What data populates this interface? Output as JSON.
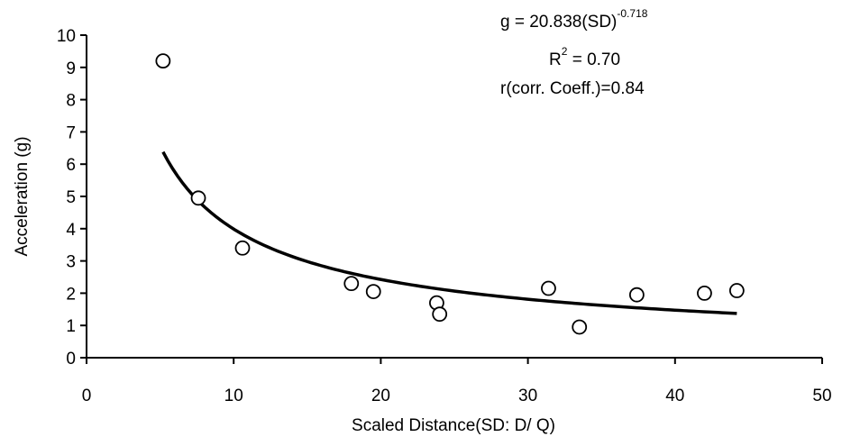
{
  "chart_data": {
    "type": "scatter",
    "xlabel": "Scaled Distance(SD: D/ Q)",
    "ylabel": "Acceleration (g)",
    "xlim": [
      0,
      50
    ],
    "ylim": [
      0,
      10
    ],
    "x_ticks": [
      0,
      10,
      20,
      30,
      40,
      50
    ],
    "y_ticks": [
      0,
      1,
      2,
      3,
      4,
      5,
      6,
      7,
      8,
      9,
      10
    ],
    "grid": false,
    "legend": "none",
    "series": [
      {
        "points": [
          {
            "x": 5.2,
            "y": 9.2
          },
          {
            "x": 7.6,
            "y": 4.95
          },
          {
            "x": 10.6,
            "y": 3.4
          },
          {
            "x": 18.0,
            "y": 2.3
          },
          {
            "x": 19.5,
            "y": 2.05
          },
          {
            "x": 23.8,
            "y": 1.7
          },
          {
            "x": 24.0,
            "y": 1.35
          },
          {
            "x": 31.4,
            "y": 2.15
          },
          {
            "x": 33.5,
            "y": 0.95
          },
          {
            "x": 37.4,
            "y": 1.95
          },
          {
            "x": 42.0,
            "y": 2.0
          },
          {
            "x": 44.2,
            "y": 2.08
          }
        ]
      }
    ],
    "trendline": {
      "type": "power",
      "coefficient": 20.838,
      "exponent": -0.718,
      "x_range": [
        5.2,
        44.2
      ]
    },
    "annotations": {
      "equation_main": "g = 20.838(SD)",
      "equation_exp": "-0.718",
      "r2_main": "R",
      "r2_sup": "2",
      "r2_value": " = 0.70",
      "corr": "r(corr. Coeff.)=0.84"
    }
  }
}
